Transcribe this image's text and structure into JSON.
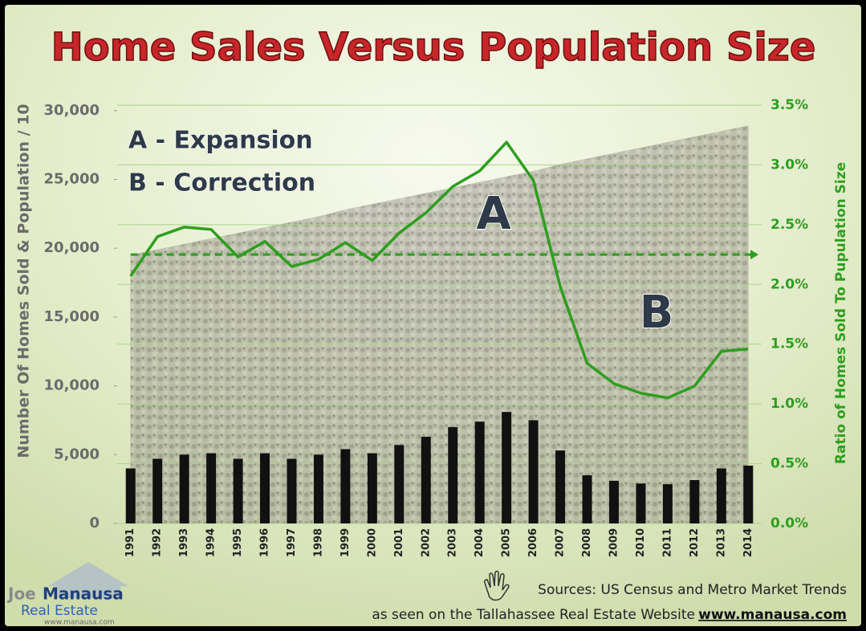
{
  "chart_data": {
    "type": "bar",
    "title": "Home Sales Versus Population Size",
    "y_label": "Number Of Homes Sold & Population / 10",
    "y2_label": "Ratio of Homes Sold To Pupulation Size",
    "categories": [
      "1991",
      "1992",
      "1993",
      "1994",
      "1995",
      "1996",
      "1997",
      "1998",
      "1999",
      "2000",
      "2001",
      "2002",
      "2003",
      "2004",
      "2005",
      "2006",
      "2007",
      "2008",
      "2009",
      "2010",
      "2011",
      "2012",
      "2013",
      "2014"
    ],
    "series": [
      {
        "type": "area",
        "color": "#8f8f86",
        "values": [
          19500,
          19900,
          20300,
          20700,
          21100,
          21500,
          21900,
          22300,
          22800,
          23200,
          23600,
          24000,
          24400,
          24800,
          25200,
          25600,
          26100,
          26500,
          26900,
          27300,
          27700,
          28100,
          28500,
          28900
        ]
      },
      {
        "type": "bar",
        "color": "#111111",
        "values": [
          4000,
          4700,
          5000,
          5100,
          4700,
          5100,
          4700,
          5000,
          5400,
          5100,
          5700,
          6300,
          7000,
          7400,
          8100,
          7500,
          5300,
          3500,
          3100,
          2900,
          2850,
          3150,
          4000,
          4200
        ]
      },
      {
        "type": "line",
        "axis": "y2",
        "color": "#2e9e1f",
        "values": [
          2.07,
          2.4,
          2.48,
          2.46,
          2.23,
          2.36,
          2.15,
          2.21,
          2.35,
          2.2,
          2.43,
          2.6,
          2.82,
          2.95,
          3.19,
          2.87,
          1.98,
          1.34,
          1.17,
          1.09,
          1.05,
          1.15,
          1.44,
          1.46
        ]
      }
    ],
    "reference_line": {
      "axis": "y2",
      "value": 2.25,
      "color": "#2e9e1f",
      "dashed": true
    },
    "ylim": [
      0,
      30400
    ],
    "yticks": [
      0,
      {
        "value": 5000,
        "label": "5,000"
      },
      {
        "value": 10000,
        "label": "10,000"
      },
      {
        "value": 15000,
        "label": "15,000"
      },
      {
        "value": 20000,
        "label": "20,000"
      },
      {
        "value": 25000,
        "label": "25,000"
      },
      {
        "value": 30000,
        "label": "30,000"
      }
    ],
    "y2lim": [
      0,
      3.5
    ],
    "y2ticks": [
      {
        "value": 0,
        "label": "0.0%"
      },
      {
        "value": 0.5,
        "label": "0.5%"
      },
      {
        "value": 1,
        "label": "1.0%"
      },
      {
        "value": 1.5,
        "label": "1.5%"
      },
      {
        "value": 2,
        "label": "2.0%"
      },
      {
        "value": 2.5,
        "label": "2.5%"
      },
      {
        "value": 3,
        "label": "3.0%"
      },
      {
        "value": 3.5,
        "label": "3.5%"
      }
    ],
    "grid": true,
    "annotations": [
      "A - Expansion",
      "B - Correction",
      "A",
      "B"
    ]
  },
  "footer": {
    "sources": "Sources: US Census and Metro Market Trends",
    "seen_on": "as seen on the Tallahassee Real Estate Website",
    "website": "www.manausa.com"
  },
  "logo": {
    "first": "Joe",
    "last": "Manausa",
    "sub": "Real Estate",
    "url": "www.manausa.com"
  }
}
